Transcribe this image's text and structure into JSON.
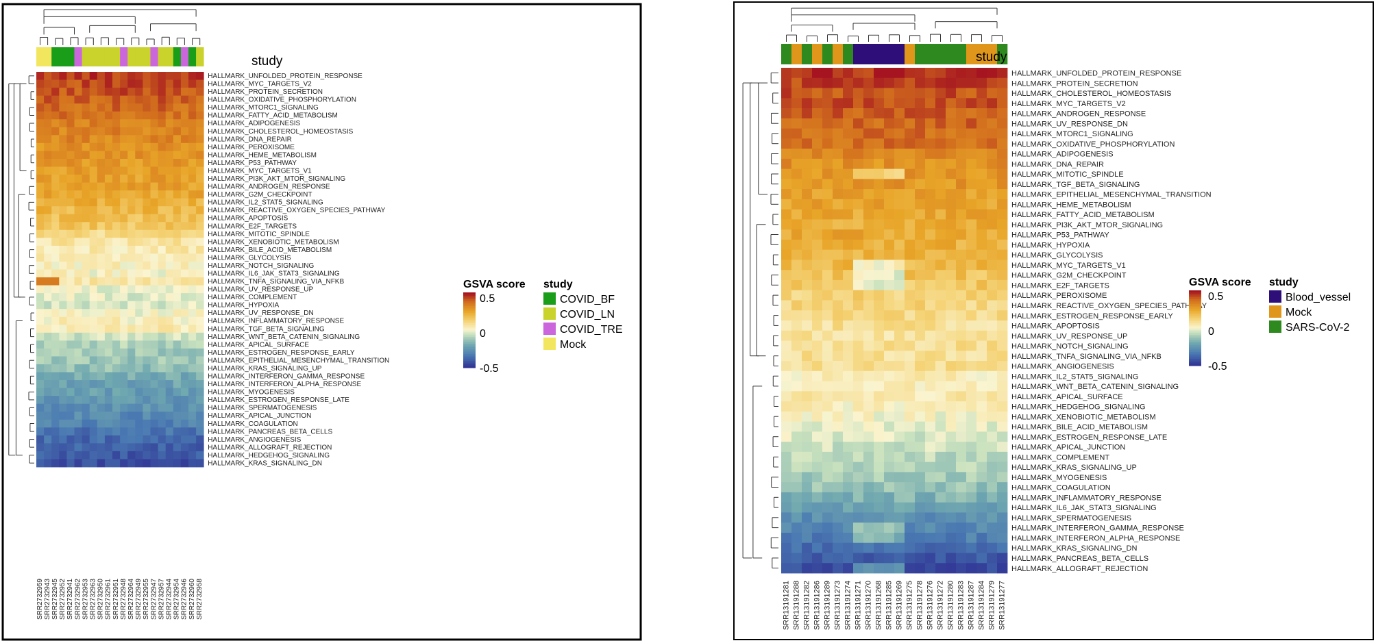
{
  "chart_data": [
    {
      "type": "heatmap",
      "title": "",
      "annotation_label": "study",
      "legend": {
        "score_title": "GSVA score",
        "score_ticks": [
          "0.5",
          "0",
          "-0.5"
        ],
        "score_range": [
          -0.5,
          0.5
        ],
        "study_title": "study",
        "study_entries": [
          {
            "label": "COVID_BF",
            "color": "#1a9e1a"
          },
          {
            "label": "COVID_LN",
            "color": "#c9d32b"
          },
          {
            "label": "COVID_TRE",
            "color": "#cc66dd"
          },
          {
            "label": "Mock",
            "color": "#f2e65e"
          }
        ]
      },
      "samples": [
        "SRR2732959",
        "SRR2732943",
        "SRR2732945",
        "SRR2732952",
        "SRR2732941",
        "SRR2732962",
        "SRR2732953",
        "SRR2732963",
        "SRR2732950",
        "SRR2732961",
        "SRR2732951",
        "SRR2732948",
        "SRR2732964",
        "SRR2732949",
        "SRR2732955",
        "SRR2732947",
        "SRR2732957",
        "SRR2732944",
        "SRR2732954",
        "SRR2732946",
        "SRR2732960",
        "SRR2732958"
      ],
      "sample_groups": [
        "Mock",
        "Mock",
        "COVID_BF",
        "COVID_BF",
        "COVID_BF",
        "COVID_TRE",
        "COVID_LN",
        "COVID_LN",
        "COVID_LN",
        "COVID_LN",
        "COVID_LN",
        "COVID_TRE",
        "COVID_LN",
        "COVID_LN",
        "COVID_LN",
        "COVID_TRE",
        "COVID_LN",
        "COVID_LN",
        "COVID_BF",
        "COVID_TRE",
        "COVID_BF",
        "COVID_LN"
      ],
      "pathways": [
        "HALLMARK_UNFOLDED_PROTEIN_RESPONSE",
        "HALLMARK_MYC_TARGETS_V2",
        "HALLMARK_PROTEIN_SECRETION",
        "HALLMARK_OXIDATIVE_PHOSPHORYLATION",
        "HALLMARK_MTORC1_SIGNALING",
        "HALLMARK_FATTY_ACID_METABOLISM",
        "HALLMARK_ADIPOGENESIS",
        "HALLMARK_CHOLESTEROL_HOMEOSTASIS",
        "HALLMARK_DNA_REPAIR",
        "HALLMARK_PEROXISOME",
        "HALLMARK_HEME_METABOLISM",
        "HALLMARK_P53_PATHWAY",
        "HALLMARK_MYC_TARGETS_V1",
        "HALLMARK_PI3K_AKT_MTOR_SIGNALING",
        "HALLMARK_ANDROGEN_RESPONSE",
        "HALLMARK_G2M_CHECKPOINT",
        "HALLMARK_IL2_STAT5_SIGNALING",
        "HALLMARK_REACTIVE_OXYGEN_SPECIES_PATHWAY",
        "HALLMARK_APOPTOSIS",
        "HALLMARK_E2F_TARGETS",
        "HALLMARK_MITOTIC_SPINDLE",
        "HALLMARK_XENOBIOTIC_METABOLISM",
        "HALLMARK_BILE_ACID_METABOLISM",
        "HALLMARK_GLYCOLYSIS",
        "HALLMARK_NOTCH_SIGNALING",
        "HALLMARK_IL6_JAK_STAT3_SIGNALING",
        "HALLMARK_TNFA_SIGNALING_VIA_NFKB",
        "HALLMARK_UV_RESPONSE_UP",
        "HALLMARK_COMPLEMENT",
        "HALLMARK_HYPOXIA",
        "HALLMARK_UV_RESPONSE_DN",
        "HALLMARK_INFLAMMATORY_RESPONSE",
        "HALLMARK_TGF_BETA_SIGNALING",
        "HALLMARK_WNT_BETA_CATENIN_SIGNALING",
        "HALLMARK_APICAL_SURFACE",
        "HALLMARK_ESTROGEN_RESPONSE_EARLY",
        "HALLMARK_EPITHELIAL_MESENCHYMAL_TRANSITION",
        "HALLMARK_KRAS_SIGNALING_UP",
        "HALLMARK_INTERFERON_GAMMA_RESPONSE",
        "HALLMARK_INTERFERON_ALPHA_RESPONSE",
        "HALLMARK_MYOGENESIS",
        "HALLMARK_ESTROGEN_RESPONSE_LATE",
        "HALLMARK_SPERMATOGENESIS",
        "HALLMARK_APICAL_JUNCTION",
        "HALLMARK_COAGULATION",
        "HALLMARK_PANCREAS_BETA_CELLS",
        "HALLMARK_ANGIOGENESIS",
        "HALLMARK_ALLOGRAFT_REJECTION",
        "HALLMARK_HEDGEHOG_SIGNALING",
        "HALLMARK_KRAS_SIGNALING_DN"
      ],
      "row_means": [
        0.45,
        0.43,
        0.42,
        0.4,
        0.38,
        0.36,
        0.34,
        0.33,
        0.32,
        0.3,
        0.29,
        0.28,
        0.27,
        0.26,
        0.25,
        0.24,
        0.22,
        0.2,
        0.18,
        0.16,
        0.1,
        0.06,
        0.04,
        0.03,
        0.02,
        0.01,
        0.05,
        -0.02,
        -0.03,
        -0.04,
        0.0,
        0.02,
        0.04,
        -0.06,
        -0.1,
        -0.12,
        -0.13,
        -0.15,
        -0.2,
        -0.22,
        -0.24,
        -0.26,
        -0.28,
        -0.3,
        -0.32,
        -0.36,
        -0.38,
        -0.4,
        -0.42,
        -0.44
      ],
      "row_notes": "Values estimated from colour: rows decline from about +0.45 (top) to about -0.45 (bottom); TNFA_SIGNALING_VIA_NFKB is high (~+0.35) in the first three samples."
    },
    {
      "type": "heatmap",
      "title": "",
      "annotation_label": "study",
      "legend": {
        "score_title": "GSVA score",
        "score_ticks": [
          "0.5",
          "0",
          "-0.5"
        ],
        "score_range": [
          -0.5,
          0.5
        ],
        "study_title": "study",
        "study_entries": [
          {
            "label": "Blood_vessel",
            "color": "#2e0f7a"
          },
          {
            "label": "Mock",
            "color": "#e0961a"
          },
          {
            "label": "SARS-CoV-2",
            "color": "#2e8a1e"
          }
        ]
      },
      "samples": [
        "SRR13191281",
        "SRR13191288",
        "SRR13191282",
        "SRR13191286",
        "SRR13191289",
        "SRR13191273",
        "SRR13191274",
        "SRR13191271",
        "SRR13191270",
        "SRR13191268",
        "SRR13191285",
        "SRR13191269",
        "SRR13191275",
        "SRR13191278",
        "SRR13191276",
        "SRR13191272",
        "SRR13191280",
        "SRR13191283",
        "SRR13191287",
        "SRR13191284",
        "SRR13191279",
        "SRR13191277"
      ],
      "sample_groups": [
        "SARS-CoV-2",
        "Mock",
        "SARS-CoV-2",
        "Mock",
        "SARS-CoV-2",
        "Mock",
        "SARS-CoV-2",
        "Blood_vessel",
        "Blood_vessel",
        "Blood_vessel",
        "Blood_vessel",
        "Blood_vessel",
        "Mock",
        "SARS-CoV-2",
        "SARS-CoV-2",
        "SARS-CoV-2",
        "SARS-CoV-2",
        "SARS-CoV-2",
        "Mock",
        "Mock",
        "Mock",
        "SARS-CoV-2"
      ],
      "pathways": [
        "HALLMARK_UNFOLDED_PROTEIN_RESPONSE",
        "HALLMARK_PROTEIN_SECRETION",
        "HALLMARK_CHOLESTEROL_HOMEOSTASIS",
        "HALLMARK_MYC_TARGETS_V2",
        "HALLMARK_ANDROGEN_RESPONSE",
        "HALLMARK_UV_RESPONSE_DN",
        "HALLMARK_MTORC1_SIGNALING",
        "HALLMARK_OXIDATIVE_PHOSPHORYLATION",
        "HALLMARK_ADIPOGENESIS",
        "HALLMARK_DNA_REPAIR",
        "HALLMARK_MITOTIC_SPINDLE",
        "HALLMARK_TGF_BETA_SIGNALING",
        "HALLMARK_EPITHELIAL_MESENCHYMAL_TRANSITION",
        "HALLMARK_HEME_METABOLISM",
        "HALLMARK_FATTY_ACID_METABOLISM",
        "HALLMARK_PI3K_AKT_MTOR_SIGNALING",
        "HALLMARK_P53_PATHWAY",
        "HALLMARK_HYPOXIA",
        "HALLMARK_GLYCOLYSIS",
        "HALLMARK_MYC_TARGETS_V1",
        "HALLMARK_G2M_CHECKPOINT",
        "HALLMARK_E2F_TARGETS",
        "HALLMARK_PEROXISOME",
        "HALLMARK_REACTIVE_OXYGEN_SPECIES_PATHWAY",
        "HALLMARK_ESTROGEN_RESPONSE_EARLY",
        "HALLMARK_APOPTOSIS",
        "HALLMARK_UV_RESPONSE_UP",
        "HALLMARK_NOTCH_SIGNALING",
        "HALLMARK_TNFA_SIGNALING_VIA_NFKB",
        "HALLMARK_ANGIOGENESIS",
        "HALLMARK_IL2_STAT5_SIGNALING",
        "HALLMARK_WNT_BETA_CATENIN_SIGNALING",
        "HALLMARK_APICAL_SURFACE",
        "HALLMARK_HEDGEHOG_SIGNALING",
        "HALLMARK_XENOBIOTIC_METABOLISM",
        "HALLMARK_BILE_ACID_METABOLISM",
        "HALLMARK_ESTROGEN_RESPONSE_LATE",
        "HALLMARK_APICAL_JUNCTION",
        "HALLMARK_COMPLEMENT",
        "HALLMARK_KRAS_SIGNALING_UP",
        "HALLMARK_MYOGENESIS",
        "HALLMARK_COAGULATION",
        "HALLMARK_INFLAMMATORY_RESPONSE",
        "HALLMARK_IL6_JAK_STAT3_SIGNALING",
        "HALLMARK_SPERMATOGENESIS",
        "HALLMARK_INTERFERON_GAMMA_RESPONSE",
        "HALLMARK_INTERFERON_ALPHA_RESPONSE",
        "HALLMARK_KRAS_SIGNALING_DN",
        "HALLMARK_PANCREAS_BETA_CELLS",
        "HALLMARK_ALLOGRAFT_REJECTION"
      ],
      "row_means": [
        0.46,
        0.44,
        0.42,
        0.42,
        0.4,
        0.39,
        0.38,
        0.37,
        0.33,
        0.3,
        0.29,
        0.28,
        0.26,
        0.25,
        0.24,
        0.23,
        0.24,
        0.22,
        0.21,
        0.2,
        0.17,
        0.15,
        0.12,
        0.11,
        0.1,
        0.08,
        0.07,
        0.08,
        0.08,
        0.09,
        0.03,
        0.02,
        0.05,
        0.02,
        0.0,
        -0.02,
        -0.04,
        -0.06,
        -0.08,
        -0.1,
        -0.12,
        -0.14,
        -0.18,
        -0.22,
        -0.28,
        -0.3,
        -0.33,
        -0.38,
        -0.42,
        -0.44
      ],
      "row_notes": "Values estimated from colour: rows decline from about +0.46 (top) to about -0.44 (bottom); Blood_vessel samples are lower on cell-cycle sets and higher on interferon sets."
    }
  ]
}
